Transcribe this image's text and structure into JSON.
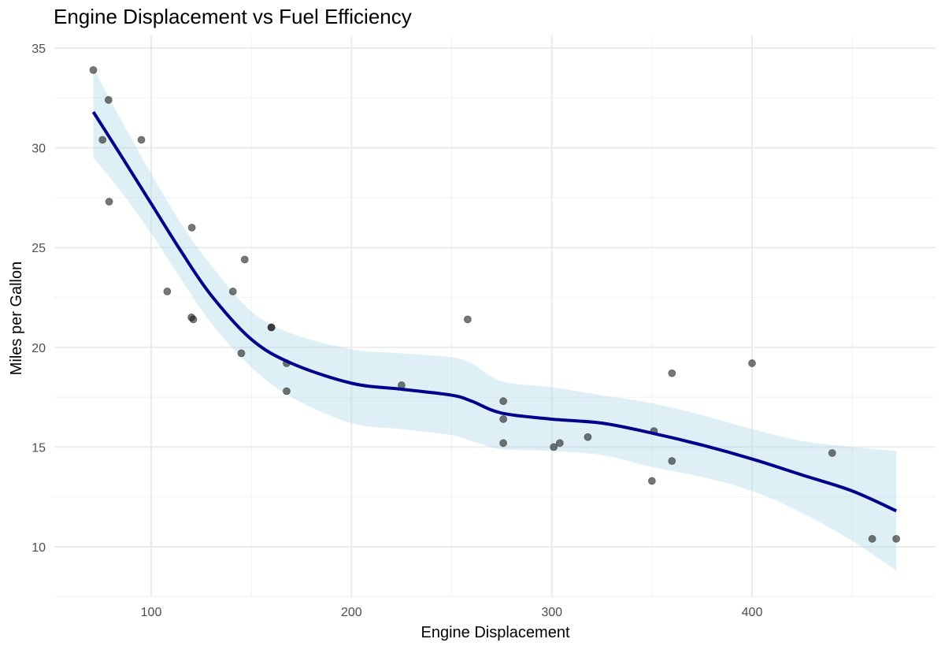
{
  "chart_data": {
    "type": "scatter",
    "title": "Engine Displacement vs Fuel Efficiency",
    "xlabel": "Engine Displacement",
    "ylabel": "Miles per Gallon",
    "xlim": [
      51.1,
      492.0
    ],
    "ylim": [
      7.6,
      35.2
    ],
    "x_ticks": [
      100,
      200,
      300,
      400
    ],
    "x_tick_labels": [
      "100",
      "200",
      "300",
      "400"
    ],
    "y_ticks": [
      10,
      15,
      20,
      25,
      30,
      35
    ],
    "y_tick_labels": [
      "10",
      "15",
      "20",
      "25",
      "30",
      "35"
    ],
    "grid": true,
    "legend": "none",
    "points": {
      "x": [
        160,
        160,
        108,
        258,
        360,
        225,
        360,
        146.7,
        140.8,
        167.6,
        167.6,
        275.8,
        275.8,
        275.8,
        472,
        460,
        440,
        78.7,
        75.7,
        71.1,
        120.1,
        318,
        304,
        350,
        400,
        79,
        120.3,
        95.1,
        351,
        145,
        301,
        121
      ],
      "y": [
        21.0,
        21.0,
        22.8,
        21.4,
        18.7,
        18.1,
        14.3,
        24.4,
        22.8,
        19.2,
        17.8,
        16.4,
        17.3,
        15.2,
        10.4,
        10.4,
        14.7,
        32.4,
        30.4,
        33.9,
        21.5,
        15.5,
        15.2,
        13.3,
        19.2,
        27.3,
        26.0,
        30.4,
        15.8,
        19.7,
        15.0,
        21.4
      ]
    },
    "smooth": {
      "method": "loess",
      "x": [
        71.1,
        85,
        100,
        115,
        130,
        150,
        170,
        200,
        225,
        250,
        260,
        275,
        300,
        325,
        350,
        375,
        400,
        425,
        450,
        472
      ],
      "y": [
        31.8,
        29.6,
        27.2,
        24.8,
        22.6,
        20.4,
        19.2,
        18.2,
        17.9,
        17.6,
        17.3,
        16.7,
        16.4,
        16.2,
        15.7,
        15.1,
        14.4,
        13.6,
        12.8,
        11.8
      ],
      "ymin": [
        29.5,
        27.8,
        25.7,
        23.4,
        21.2,
        19.0,
        17.5,
        16.2,
        15.9,
        15.6,
        15.3,
        14.9,
        14.8,
        14.6,
        14.0,
        13.5,
        12.8,
        11.7,
        10.3,
        8.8
      ],
      "ymax": [
        34.0,
        31.4,
        28.7,
        26.2,
        24.1,
        21.8,
        20.7,
        19.9,
        19.7,
        19.5,
        19.2,
        18.3,
        18.0,
        17.6,
        17.2,
        16.6,
        15.9,
        15.3,
        15.0,
        14.8
      ]
    },
    "colors": {
      "line": "#00008b",
      "band": "#add8e6",
      "point": "#1a1a1a"
    }
  }
}
